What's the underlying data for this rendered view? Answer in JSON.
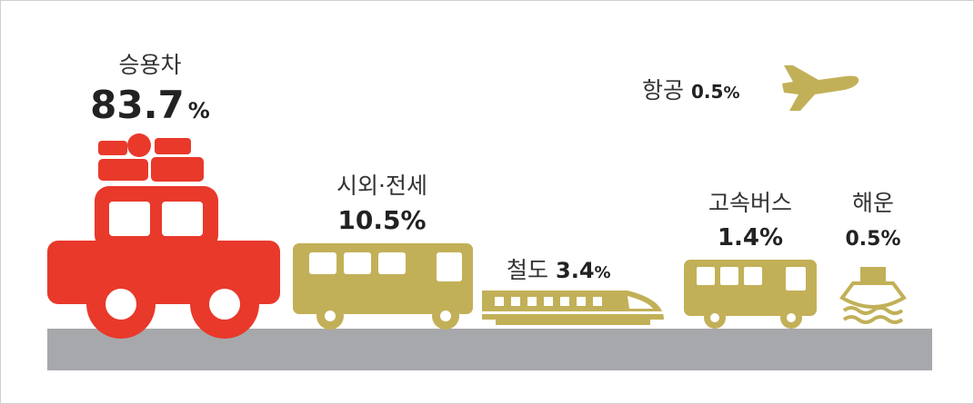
{
  "items": [
    {
      "label": "승용차",
      "value": "83.7",
      "unit": "%"
    },
    {
      "label": "시외·전세",
      "value": "10.5",
      "unit": "%"
    },
    {
      "label": "철도",
      "value": "3.4",
      "unit": "%"
    },
    {
      "label": "고속버스",
      "value": "1.4",
      "unit": "%"
    },
    {
      "label": "해운",
      "value": "0.5",
      "unit": "%"
    },
    {
      "label": "항공",
      "value": "0.5",
      "unit": "%"
    }
  ]
}
